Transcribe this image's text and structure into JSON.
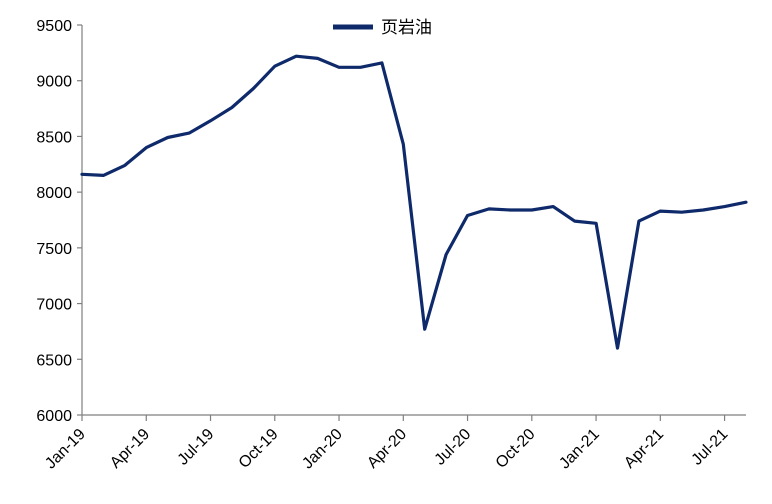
{
  "chart_data": {
    "type": "line",
    "title": "",
    "xlabel": "",
    "ylabel": "",
    "ylim": [
      6000,
      9500
    ],
    "y_ticks": [
      6000,
      6500,
      7000,
      7500,
      8000,
      8500,
      9000,
      9500
    ],
    "x_tick_labels": [
      "Jan-19",
      "Apr-19",
      "Jul-19",
      "Oct-19",
      "Jan-20",
      "Apr-20",
      "Jul-20",
      "Oct-20",
      "Jan-21",
      "Apr-21",
      "Jul-21"
    ],
    "grid": false,
    "legend_position": "top-center",
    "series": [
      {
        "name": "页岩油",
        "color": "#0f2a6b",
        "x": [
          "2019-01",
          "2019-02",
          "2019-03",
          "2019-04",
          "2019-05",
          "2019-06",
          "2019-07",
          "2019-08",
          "2019-09",
          "2019-10",
          "2019-11",
          "2019-12",
          "2020-01",
          "2020-02",
          "2020-03",
          "2020-04",
          "2020-05",
          "2020-06",
          "2020-07",
          "2020-08",
          "2020-09",
          "2020-10",
          "2020-11",
          "2020-12",
          "2021-01",
          "2021-02",
          "2021-03",
          "2021-04",
          "2021-05",
          "2021-06",
          "2021-07",
          "2021-08"
        ],
        "values": [
          8160,
          8150,
          8240,
          8400,
          8490,
          8530,
          8640,
          8760,
          8930,
          9130,
          9220,
          9200,
          9120,
          9120,
          9160,
          8430,
          6770,
          7440,
          7790,
          7850,
          7840,
          7840,
          7870,
          7740,
          7720,
          6600,
          7740,
          7830,
          7820,
          7840,
          7870,
          7910
        ]
      }
    ]
  }
}
